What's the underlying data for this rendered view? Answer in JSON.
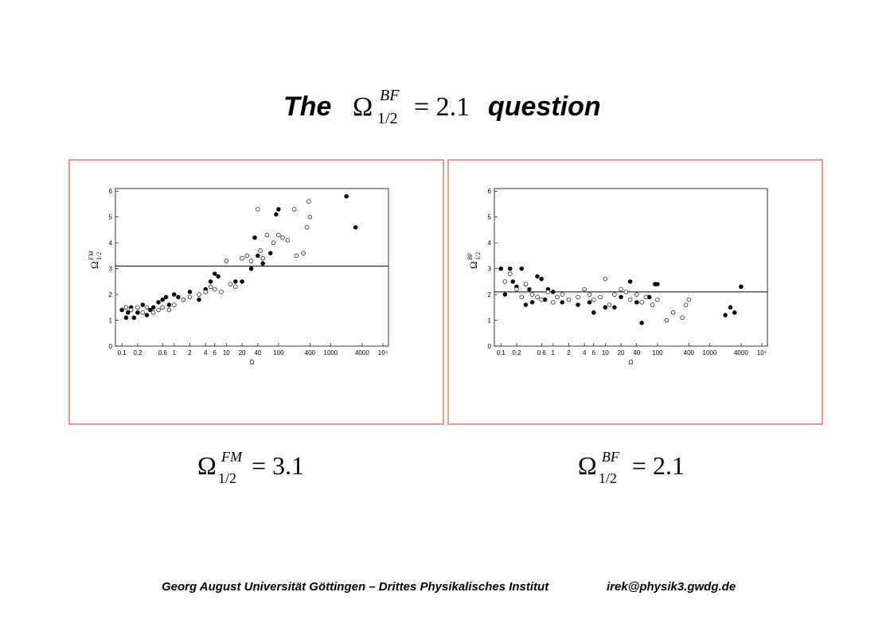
{
  "title": {
    "lead": "The",
    "symbol": "Ω",
    "sup": "BF",
    "sub": "1/2",
    "value": "= 2.1",
    "tail": "question"
  },
  "chart_data": [
    {
      "type": "scatter",
      "xlabel": "Ω",
      "ylabel": {
        "symbol": "Ω",
        "sup": "FM",
        "sub": "1/2"
      },
      "log_x": true,
      "xlim": [
        0.075,
        12800
      ],
      "ylim": [
        0,
        6.1
      ],
      "xticks": [
        0.1,
        0.2,
        0.6,
        1,
        2,
        4,
        6,
        10,
        20,
        40,
        100,
        400,
        1000,
        4000,
        {
          "value": 10000,
          "label": "10⁴"
        }
      ],
      "yticks": [
        0,
        1,
        2,
        3,
        4,
        5,
        6
      ],
      "hline": 3.1,
      "caption": {
        "symbol": "Ω",
        "sup": "FM",
        "sub": "1/2",
        "value": "= 3.1"
      },
      "series": [
        {
          "marker": "filled",
          "color": "#000000",
          "x": [
            0.1,
            0.12,
            0.13,
            0.15,
            0.17,
            0.2,
            0.25,
            0.3,
            0.35,
            0.4,
            0.5,
            0.6,
            0.7,
            0.8,
            1,
            1.2,
            1.5,
            2,
            3,
            4,
            5,
            6,
            7,
            15,
            20,
            30,
            35,
            40,
            50,
            70,
            90,
            100,
            2000,
            3000
          ],
          "y": [
            1.4,
            1.1,
            1.3,
            1.5,
            1.1,
            1.3,
            1.6,
            1.2,
            1.4,
            1.5,
            1.7,
            1.8,
            1.9,
            1.6,
            2.0,
            1.9,
            1.8,
            2.1,
            1.8,
            2.2,
            2.5,
            2.8,
            2.7,
            2.5,
            2.5,
            3.0,
            4.2,
            3.5,
            3.2,
            3.6,
            5.1,
            5.3,
            5.8,
            4.6
          ]
        },
        {
          "marker": "open",
          "color": "#000000",
          "x": [
            0.12,
            0.15,
            0.2,
            0.25,
            0.3,
            0.4,
            0.5,
            0.6,
            0.8,
            1,
            1.5,
            2,
            3,
            4,
            5,
            6,
            8,
            10,
            12,
            15,
            20,
            25,
            30,
            40,
            45,
            50,
            60,
            80,
            100,
            120,
            150,
            200,
            220,
            300,
            350,
            380,
            400
          ],
          "y": [
            1.5,
            1.4,
            1.5,
            1.3,
            1.5,
            1.3,
            1.4,
            1.5,
            1.4,
            1.6,
            1.8,
            1.9,
            2.0,
            2.1,
            2.3,
            2.2,
            2.1,
            3.3,
            2.4,
            2.3,
            3.4,
            3.5,
            3.3,
            5.3,
            3.7,
            3.4,
            4.3,
            4.0,
            4.3,
            4.2,
            4.1,
            5.3,
            3.5,
            3.6,
            4.6,
            5.6,
            5.0
          ]
        }
      ]
    },
    {
      "type": "scatter",
      "xlabel": "Ω",
      "ylabel": {
        "symbol": "Ω",
        "sup": "BF",
        "sub": "1/2"
      },
      "log_x": true,
      "xlim": [
        0.075,
        12800
      ],
      "ylim": [
        0,
        6.1
      ],
      "xticks": [
        0.1,
        0.2,
        0.6,
        1,
        2,
        4,
        6,
        10,
        20,
        40,
        100,
        400,
        1000,
        4000,
        {
          "value": 10000,
          "label": "10⁴"
        }
      ],
      "yticks": [
        0,
        1,
        2,
        3,
        4,
        5,
        6
      ],
      "hline": 2.1,
      "caption": {
        "symbol": "Ω",
        "sup": "BF",
        "sub": "1/2",
        "value": "= 2.1"
      },
      "series": [
        {
          "marker": "filled",
          "color": "#000000",
          "x": [
            0.1,
            0.12,
            0.15,
            0.17,
            0.2,
            0.25,
            0.3,
            0.35,
            0.4,
            0.5,
            0.6,
            0.7,
            0.8,
            1,
            1.5,
            2,
            3,
            5,
            6,
            10,
            15,
            20,
            30,
            40,
            50,
            70,
            90,
            100,
            2000,
            2500,
            3000,
            4000
          ],
          "y": [
            3.0,
            2.0,
            3.0,
            2.5,
            2.3,
            3.0,
            1.6,
            2.2,
            1.7,
            2.7,
            2.6,
            1.8,
            2.2,
            2.1,
            1.7,
            1.8,
            1.6,
            1.7,
            1.3,
            1.5,
            1.5,
            1.9,
            2.5,
            1.7,
            0.9,
            1.9,
            2.4,
            2.4,
            1.2,
            1.5,
            1.3,
            2.3
          ]
        },
        {
          "marker": "open",
          "color": "#000000",
          "x": [
            0.12,
            0.15,
            0.2,
            0.25,
            0.3,
            0.4,
            0.5,
            0.6,
            0.8,
            1,
            1.2,
            1.5,
            2,
            3,
            4,
            5,
            6,
            8,
            10,
            12,
            15,
            20,
            25,
            30,
            40,
            50,
            60,
            80,
            100,
            150,
            200,
            300,
            350,
            400
          ],
          "y": [
            2.5,
            2.8,
            2.2,
            1.9,
            2.4,
            2.0,
            1.9,
            1.8,
            2.1,
            1.7,
            1.9,
            2.0,
            1.8,
            1.9,
            2.2,
            2.0,
            1.8,
            1.9,
            2.6,
            1.6,
            2.0,
            2.2,
            2.1,
            1.8,
            2.0,
            1.7,
            1.9,
            1.6,
            1.8,
            1.0,
            1.3,
            1.1,
            1.6,
            1.8
          ]
        }
      ]
    }
  ],
  "footer": {
    "institution": "Georg August Universität Göttingen – Drittes Physikalisches Institut",
    "email": "irek@physik3.gwdg.de"
  }
}
